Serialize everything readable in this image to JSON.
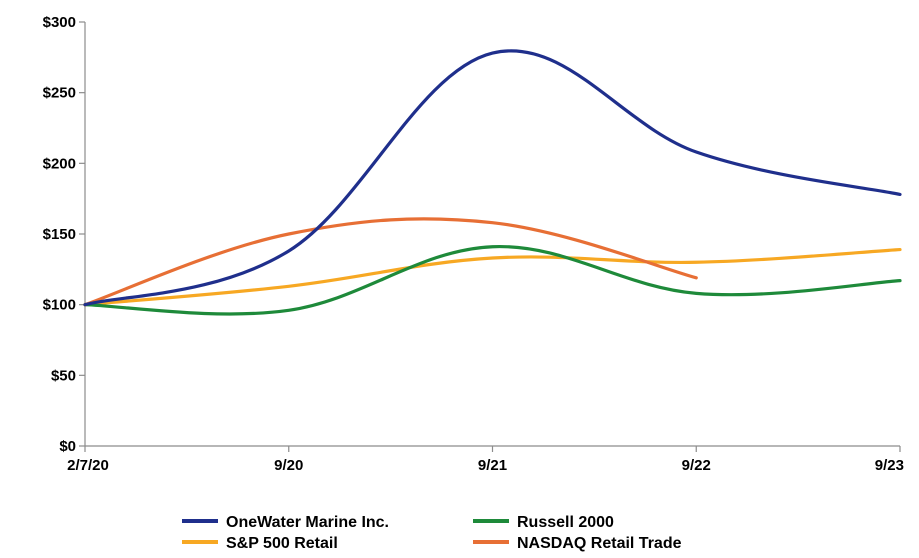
{
  "chart_data": {
    "type": "line",
    "x": [
      "2/7/20",
      "9/20",
      "9/21",
      "9/22",
      "9/23"
    ],
    "ylim": [
      0,
      300
    ],
    "yticks": [
      0,
      50,
      100,
      150,
      200,
      250,
      300
    ],
    "ytick_labels": [
      "$0",
      "$50",
      "$100",
      "$150",
      "$200",
      "$250",
      "$300"
    ],
    "grid": false,
    "legend_position": "bottom-center",
    "series": [
      {
        "name": "OneWater Marine Inc.",
        "color": "#1f2f8c",
        "values": [
          100,
          138,
          278,
          208,
          178
        ]
      },
      {
        "name": "Russell 2000",
        "color": "#1e8a3a",
        "values": [
          100,
          96,
          141,
          108,
          117
        ]
      },
      {
        "name": "S&P 500 Retail",
        "color": "#f7a823",
        "values": [
          100,
          113,
          133,
          130,
          139
        ]
      },
      {
        "name": "NASDAQ Retail Trade",
        "color": "#e76f35",
        "values": [
          100,
          150,
          158,
          119,
          null
        ]
      }
    ]
  }
}
